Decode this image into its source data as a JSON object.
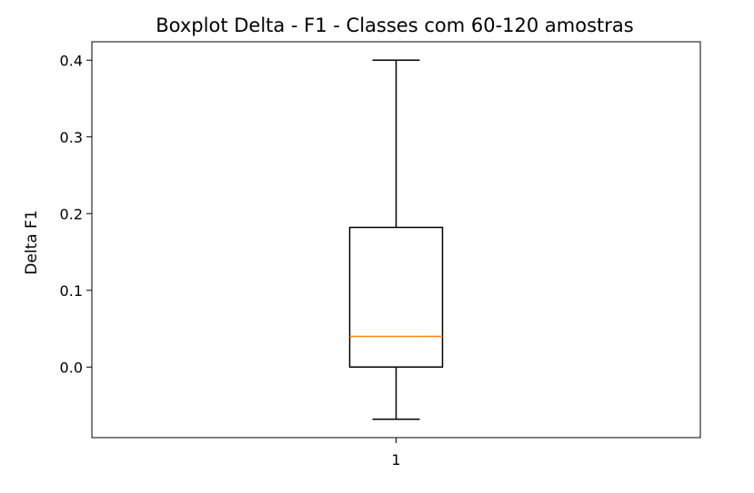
{
  "chart_data": {
    "type": "boxplot",
    "title": "Boxplot Delta - F1 - Classes com 60-120 amostras",
    "xlabel": "",
    "ylabel": "Delta F1",
    "categories": [
      "1"
    ],
    "ylim": [
      -0.092,
      0.424
    ],
    "yticks": [
      "0.0",
      "0.1",
      "0.2",
      "0.3",
      "0.4"
    ],
    "ytick_values": [
      0.0,
      0.1,
      0.2,
      0.3,
      0.4
    ],
    "boxes": [
      {
        "label": "1",
        "whisker_low": -0.068,
        "q1": 0.0,
        "median": 0.04,
        "q3": 0.182,
        "whisker_high": 0.4
      }
    ],
    "grid": false,
    "colors": {
      "box": "#000000",
      "median": "#ff7f0e",
      "whisker": "#000000"
    }
  }
}
